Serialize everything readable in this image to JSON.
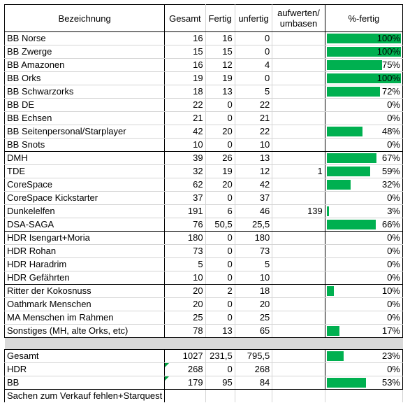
{
  "headers": {
    "name": "Bezeichnung",
    "gesamt": "Gesamt",
    "fertig": "Fertig",
    "unfertig": "unfertig",
    "aufwerten_line1": "aufwerten/",
    "aufwerten_line2": "umbasen",
    "pct": "%-fertig"
  },
  "colors": {
    "bar": "#00b050",
    "error_marker": "#00a040"
  },
  "rows": [
    {
      "name": "BB Norse",
      "gesamt": "16",
      "fertig": "16",
      "unfertig": "0",
      "auf": "",
      "pct": "100%",
      "fill": 1.0,
      "group_end": false
    },
    {
      "name": "BB Zwerge",
      "gesamt": "15",
      "fertig": "15",
      "unfertig": "0",
      "auf": "",
      "pct": "100%",
      "fill": 1.0,
      "group_end": false
    },
    {
      "name": "BB Amazonen",
      "gesamt": "16",
      "fertig": "12",
      "unfertig": "4",
      "auf": "",
      "pct": "75%",
      "fill": 0.75,
      "group_end": false
    },
    {
      "name": "BB Orks",
      "gesamt": "19",
      "fertig": "19",
      "unfertig": "0",
      "auf": "",
      "pct": "100%",
      "fill": 1.0,
      "group_end": false
    },
    {
      "name": "BB Schwarzorks",
      "gesamt": "18",
      "fertig": "13",
      "unfertig": "5",
      "auf": "",
      "pct": "72%",
      "fill": 0.72,
      "group_end": false
    },
    {
      "name": "BB DE",
      "gesamt": "22",
      "fertig": "0",
      "unfertig": "22",
      "auf": "",
      "pct": "0%",
      "fill": 0,
      "group_end": false
    },
    {
      "name": "BB Echsen",
      "gesamt": "21",
      "fertig": "0",
      "unfertig": "21",
      "auf": "",
      "pct": "0%",
      "fill": 0,
      "group_end": false
    },
    {
      "name": "BB Seitenpersonal/Starplayer",
      "gesamt": "42",
      "fertig": "20",
      "unfertig": "22",
      "auf": "",
      "pct": "48%",
      "fill": 0.48,
      "group_end": false
    },
    {
      "name": "BB Snots",
      "gesamt": "10",
      "fertig": "0",
      "unfertig": "10",
      "auf": "",
      "pct": "0%",
      "fill": 0,
      "group_end": true
    },
    {
      "name": "DMH",
      "gesamt": "39",
      "fertig": "26",
      "unfertig": "13",
      "auf": "",
      "pct": "67%",
      "fill": 0.67,
      "group_end": false
    },
    {
      "name": "TDE",
      "gesamt": "32",
      "fertig": "19",
      "unfertig": "12",
      "auf": "1",
      "pct": "59%",
      "fill": 0.59,
      "group_end": false
    },
    {
      "name": "CoreSpace",
      "gesamt": "62",
      "fertig": "20",
      "unfertig": "42",
      "auf": "",
      "pct": "32%",
      "fill": 0.32,
      "group_end": false
    },
    {
      "name": "CoreSpace Kickstarter",
      "gesamt": "37",
      "fertig": "0",
      "unfertig": "37",
      "auf": "",
      "pct": "0%",
      "fill": 0,
      "group_end": false
    },
    {
      "name": "Dunkelelfen",
      "gesamt": "191",
      "fertig": "6",
      "unfertig": "46",
      "auf": "139",
      "pct": "3%",
      "fill": 0.03,
      "group_end": false
    },
    {
      "name": "DSA-SAGA",
      "gesamt": "76",
      "fertig": "50,5",
      "unfertig": "25,5",
      "auf": "",
      "pct": "66%",
      "fill": 0.66,
      "group_end": true
    },
    {
      "name": "HDR Isengart+Moria",
      "gesamt": "180",
      "fertig": "0",
      "unfertig": "180",
      "auf": "",
      "pct": "0%",
      "fill": 0,
      "group_end": false
    },
    {
      "name": "HDR Rohan",
      "gesamt": "73",
      "fertig": "0",
      "unfertig": "73",
      "auf": "",
      "pct": "0%",
      "fill": 0,
      "group_end": false
    },
    {
      "name": "HDR Haradrim",
      "gesamt": "5",
      "fertig": "0",
      "unfertig": "5",
      "auf": "",
      "pct": "0%",
      "fill": 0,
      "group_end": false
    },
    {
      "name": "HDR Gefährten",
      "gesamt": "10",
      "fertig": "0",
      "unfertig": "10",
      "auf": "",
      "pct": "0%",
      "fill": 0,
      "group_end": true
    },
    {
      "name": "Ritter der Kokosnuss",
      "gesamt": "20",
      "fertig": "2",
      "unfertig": "18",
      "auf": "",
      "pct": "10%",
      "fill": 0.1,
      "group_end": false
    },
    {
      "name": "Oathmark Menschen",
      "gesamt": "20",
      "fertig": "0",
      "unfertig": "20",
      "auf": "",
      "pct": "0%",
      "fill": 0,
      "group_end": false
    },
    {
      "name": "MA Menschen im Rahmen",
      "gesamt": "25",
      "fertig": "0",
      "unfertig": "25",
      "auf": "",
      "pct": "0%",
      "fill": 0,
      "group_end": false
    },
    {
      "name": "Sonstiges (MH, alte Orks, etc)",
      "gesamt": "78",
      "fertig": "13",
      "unfertig": "65",
      "auf": "",
      "pct": "17%",
      "fill": 0.17,
      "group_end": true
    }
  ],
  "summary": [
    {
      "name": "Gesamt",
      "gesamt": "1027",
      "fertig": "231,5",
      "unfertig": "795,5",
      "auf": "",
      "pct": "23%",
      "fill": 0.23,
      "marker": false
    },
    {
      "name": "HDR",
      "gesamt": "268",
      "fertig": "0",
      "unfertig": "268",
      "auf": "",
      "pct": "0%",
      "fill": 0,
      "marker": true
    },
    {
      "name": "BB",
      "gesamt": "179",
      "fertig": "95",
      "unfertig": "84",
      "auf": "",
      "pct": "53%",
      "fill": 0.53,
      "marker": true
    }
  ],
  "note": "Sachen zum Verkauf fehlen+Starquest"
}
